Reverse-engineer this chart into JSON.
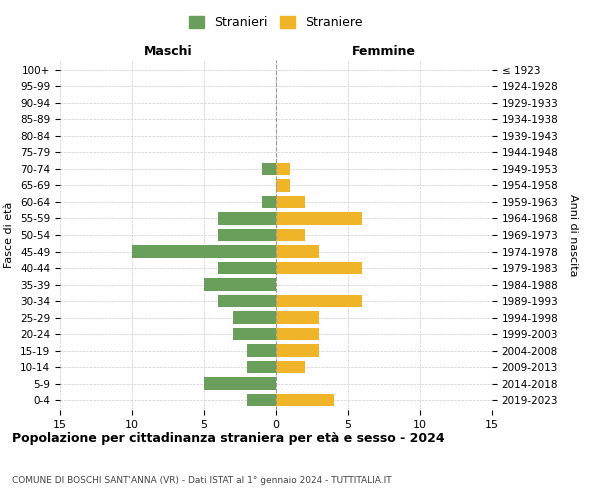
{
  "age_groups": [
    "0-4",
    "5-9",
    "10-14",
    "15-19",
    "20-24",
    "25-29",
    "30-34",
    "35-39",
    "40-44",
    "45-49",
    "50-54",
    "55-59",
    "60-64",
    "65-69",
    "70-74",
    "75-79",
    "80-84",
    "85-89",
    "90-94",
    "95-99",
    "100+"
  ],
  "birth_years": [
    "2019-2023",
    "2014-2018",
    "2009-2013",
    "2004-2008",
    "1999-2003",
    "1994-1998",
    "1989-1993",
    "1984-1988",
    "1979-1983",
    "1974-1978",
    "1969-1973",
    "1964-1968",
    "1959-1963",
    "1954-1958",
    "1949-1953",
    "1944-1948",
    "1939-1943",
    "1934-1938",
    "1929-1933",
    "1924-1928",
    "≤ 1923"
  ],
  "maschi": [
    2,
    5,
    2,
    2,
    3,
    3,
    4,
    5,
    4,
    10,
    4,
    4,
    1,
    0,
    1,
    0,
    0,
    0,
    0,
    0,
    0
  ],
  "femmine": [
    4,
    0,
    2,
    3,
    3,
    3,
    6,
    0,
    6,
    3,
    2,
    6,
    2,
    1,
    1,
    0,
    0,
    0,
    0,
    0,
    0
  ],
  "maschi_color": "#6a9f5b",
  "femmine_color": "#f0b429",
  "background_color": "#ffffff",
  "grid_color": "#cccccc",
  "title": "Popolazione per cittadinanza straniera per età e sesso - 2024",
  "subtitle": "COMUNE DI BOSCHI SANT'ANNA (VR) - Dati ISTAT al 1° gennaio 2024 - TUTTITALIA.IT",
  "xlabel_left": "Maschi",
  "xlabel_right": "Femmine",
  "ylabel_left": "Fasce di età",
  "ylabel_right": "Anni di nascita",
  "legend_maschi": "Stranieri",
  "legend_femmine": "Straniere",
  "xlim": 15
}
